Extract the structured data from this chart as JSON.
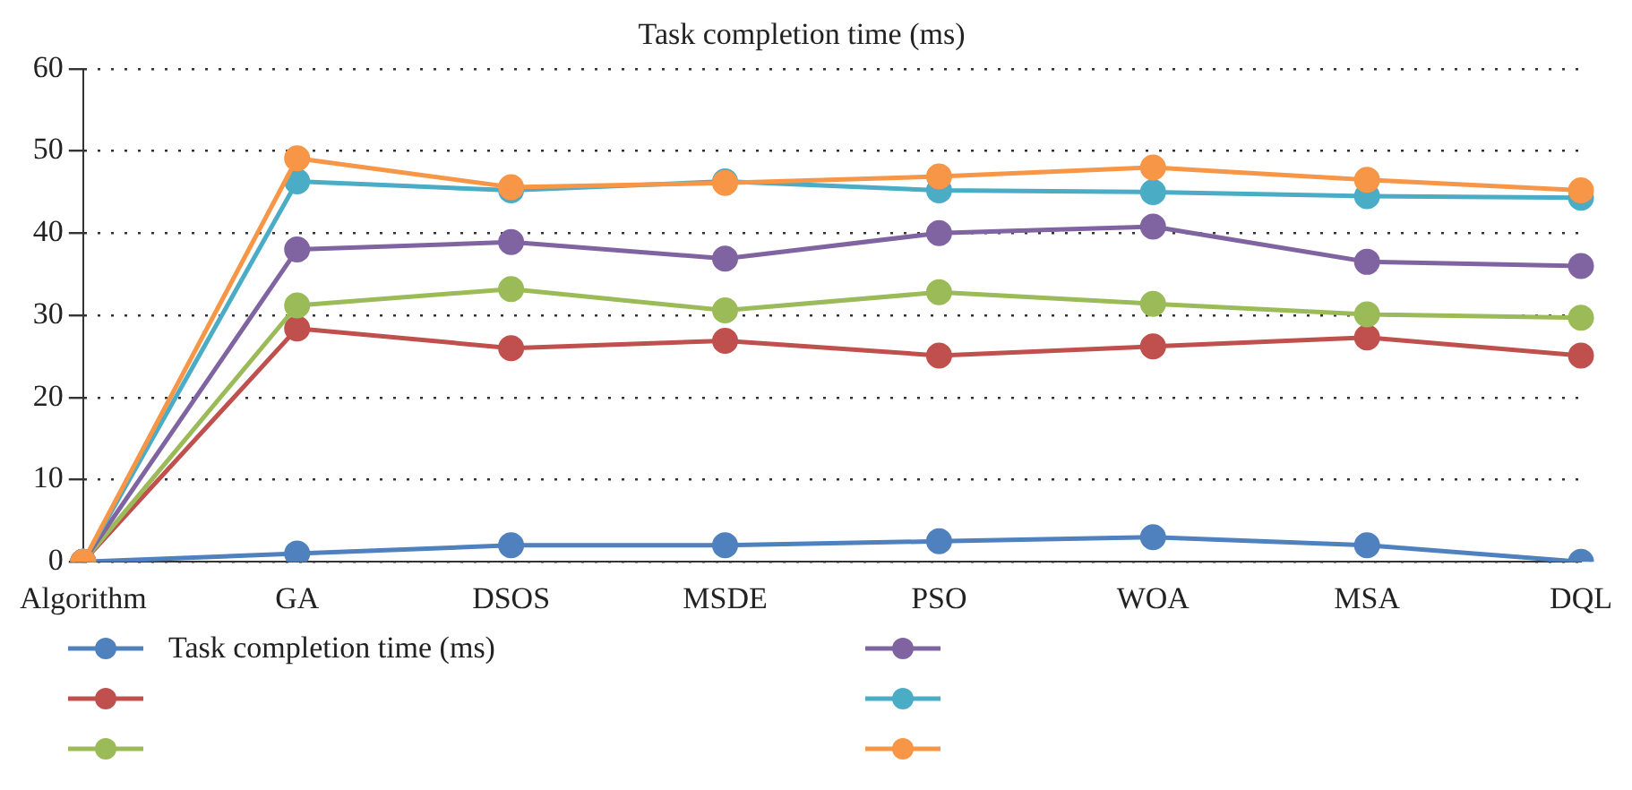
{
  "chart_data": {
    "type": "line",
    "title": "Task completion time (ms)",
    "categories": [
      "Algorithm",
      "GA",
      "DSOS",
      "MSDE",
      "PSO",
      "WOA",
      "MSA",
      "DQL"
    ],
    "series": [
      {
        "name": "Task completion time (ms)",
        "color": "#4e81bd",
        "values": [
          0,
          1,
          2,
          2,
          2.5,
          3,
          2,
          0
        ]
      },
      {
        "color": "#c0504d",
        "values": [
          0,
          28.4,
          26,
          26.9,
          25.1,
          26.2,
          27.3,
          25.1
        ]
      },
      {
        "color": "#9bbb59",
        "values": [
          0,
          31.2,
          33.2,
          30.6,
          32.8,
          31.4,
          30.1,
          29.7
        ]
      },
      {
        "color": "#8064a2",
        "values": [
          0,
          38,
          38.9,
          36.9,
          40,
          40.8,
          36.5,
          36
        ]
      },
      {
        "color": "#4bacc6",
        "values": [
          0,
          46.3,
          45.2,
          46.3,
          45.2,
          45,
          44.5,
          44.3
        ]
      },
      {
        "color": "#f79646",
        "values": [
          0,
          49.1,
          45.6,
          46.1,
          46.9,
          48,
          46.5,
          45.2
        ]
      }
    ],
    "ylim": [
      0,
      60
    ],
    "yticks": [
      0,
      10,
      20,
      30,
      40,
      50,
      60
    ],
    "grid": "y",
    "legend": "bottom",
    "marker": "circle",
    "line_style": "solid"
  }
}
